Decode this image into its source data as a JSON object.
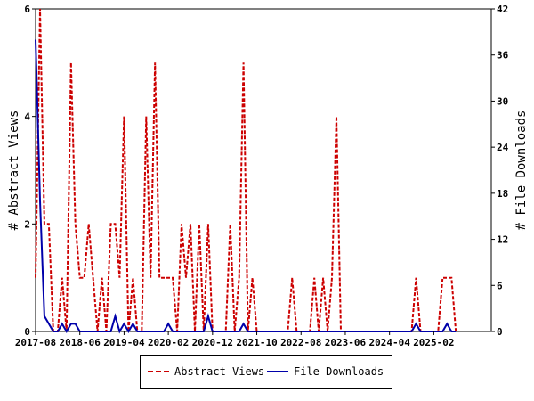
{
  "chart_data": {
    "type": "line",
    "title": "",
    "ylabel": "# Abstract Views",
    "y2label": "# File Downloads",
    "ylim": [
      0,
      6
    ],
    "y2lim": [
      0,
      42
    ],
    "yticks": [
      "0",
      "2",
      "4",
      "6"
    ],
    "y2ticks": [
      "0",
      "6",
      "12",
      "18",
      "24",
      "30",
      "36",
      "42"
    ],
    "xlim": [
      "2017-08",
      "2026-03"
    ],
    "xticks": [
      "2017-08",
      "2018-06",
      "2019-04",
      "2020-02",
      "2020-12",
      "2021-10",
      "2022-08",
      "2023-06",
      "2024-04",
      "2025-02"
    ],
    "grid": false,
    "legend_position": "bottom",
    "series": [
      {
        "name": "Abstract Views",
        "axis": "left",
        "color": "#cc0000",
        "style": "dashed",
        "points": [
          [
            "2017-08",
            1
          ],
          [
            "2017-09",
            6
          ],
          [
            "2017-10",
            2
          ],
          [
            "2017-11",
            2
          ],
          [
            "2017-12",
            0
          ],
          [
            "2018-01",
            0
          ],
          [
            "2018-02",
            1
          ],
          [
            "2018-03",
            0
          ],
          [
            "2018-04",
            5
          ],
          [
            "2018-05",
            2
          ],
          [
            "2018-06",
            1
          ],
          [
            "2018-07",
            1
          ],
          [
            "2018-08",
            2
          ],
          [
            "2018-09",
            1
          ],
          [
            "2018-10",
            0
          ],
          [
            "2018-11",
            1
          ],
          [
            "2018-12",
            0
          ],
          [
            "2019-01",
            2
          ],
          [
            "2019-02",
            2
          ],
          [
            "2019-03",
            1
          ],
          [
            "2019-04",
            4
          ],
          [
            "2019-05",
            0
          ],
          [
            "2019-06",
            1
          ],
          [
            "2019-07",
            0
          ],
          [
            "2019-08",
            0
          ],
          [
            "2019-09",
            4
          ],
          [
            "2019-10",
            1
          ],
          [
            "2019-11",
            5
          ],
          [
            "2019-12",
            1
          ],
          [
            "2020-01",
            1
          ],
          [
            "2020-02",
            1
          ],
          [
            "2020-03",
            1
          ],
          [
            "2020-04",
            0
          ],
          [
            "2020-05",
            2
          ],
          [
            "2020-06",
            1
          ],
          [
            "2020-07",
            2
          ],
          [
            "2020-08",
            0
          ],
          [
            "2020-09",
            2
          ],
          [
            "2020-10",
            0
          ],
          [
            "2020-11",
            2
          ],
          [
            "2020-12",
            0
          ],
          [
            "2021-01",
            0
          ],
          [
            "2021-02",
            0
          ],
          [
            "2021-03",
            0
          ],
          [
            "2021-04",
            2
          ],
          [
            "2021-05",
            0
          ],
          [
            "2021-06",
            1
          ],
          [
            "2021-07",
            5
          ],
          [
            "2021-08",
            0
          ],
          [
            "2021-09",
            1
          ],
          [
            "2021-10",
            0
          ],
          [
            "2021-11",
            0
          ],
          [
            "2021-12",
            0
          ],
          [
            "2022-01",
            0
          ],
          [
            "2022-02",
            0
          ],
          [
            "2022-03",
            0
          ],
          [
            "2022-04",
            0
          ],
          [
            "2022-05",
            0
          ],
          [
            "2022-06",
            1
          ],
          [
            "2022-07",
            0
          ],
          [
            "2022-08",
            0
          ],
          [
            "2022-09",
            0
          ],
          [
            "2022-10",
            0
          ],
          [
            "2022-11",
            1
          ],
          [
            "2022-12",
            0
          ],
          [
            "2023-01",
            1
          ],
          [
            "2023-02",
            0
          ],
          [
            "2023-03",
            1
          ],
          [
            "2023-04",
            4
          ],
          [
            "2023-05",
            0
          ],
          [
            "2023-06",
            0
          ],
          [
            "2023-07",
            0
          ],
          [
            "2023-08",
            0
          ],
          [
            "2023-09",
            0
          ],
          [
            "2023-10",
            0
          ],
          [
            "2023-11",
            0
          ],
          [
            "2023-12",
            0
          ],
          [
            "2024-01",
            0
          ],
          [
            "2024-02",
            0
          ],
          [
            "2024-03",
            0
          ],
          [
            "2024-04",
            0
          ],
          [
            "2024-05",
            0
          ],
          [
            "2024-06",
            0
          ],
          [
            "2024-07",
            0
          ],
          [
            "2024-08",
            0
          ],
          [
            "2024-09",
            0
          ],
          [
            "2024-10",
            1
          ],
          [
            "2024-11",
            0
          ],
          [
            "2024-12",
            0
          ],
          [
            "2025-01",
            0
          ],
          [
            "2025-02",
            0
          ],
          [
            "2025-03",
            0
          ],
          [
            "2025-04",
            1
          ],
          [
            "2025-05",
            1
          ],
          [
            "2025-06",
            1
          ],
          [
            "2025-07",
            0
          ]
        ]
      },
      {
        "name": "File Downloads",
        "axis": "right",
        "color": "#0000aa",
        "style": "solid",
        "points": [
          [
            "2017-08",
            38
          ],
          [
            "2017-09",
            17
          ],
          [
            "2017-10",
            2
          ],
          [
            "2017-11",
            1
          ],
          [
            "2017-12",
            0
          ],
          [
            "2018-01",
            0
          ],
          [
            "2018-02",
            1
          ],
          [
            "2018-03",
            0
          ],
          [
            "2018-04",
            1
          ],
          [
            "2018-05",
            1
          ],
          [
            "2018-06",
            0
          ],
          [
            "2018-07",
            0
          ],
          [
            "2018-08",
            0
          ],
          [
            "2018-09",
            0
          ],
          [
            "2018-10",
            0
          ],
          [
            "2018-11",
            0
          ],
          [
            "2018-12",
            0
          ],
          [
            "2019-01",
            0
          ],
          [
            "2019-02",
            2
          ],
          [
            "2019-03",
            0
          ],
          [
            "2019-04",
            1
          ],
          [
            "2019-05",
            0
          ],
          [
            "2019-06",
            1
          ],
          [
            "2019-07",
            0
          ],
          [
            "2019-08",
            0
          ],
          [
            "2019-09",
            0
          ],
          [
            "2019-10",
            0
          ],
          [
            "2019-11",
            0
          ],
          [
            "2019-12",
            0
          ],
          [
            "2020-01",
            0
          ],
          [
            "2020-02",
            1
          ],
          [
            "2020-03",
            0
          ],
          [
            "2020-04",
            0
          ],
          [
            "2020-05",
            0
          ],
          [
            "2020-06",
            0
          ],
          [
            "2020-07",
            0
          ],
          [
            "2020-08",
            0
          ],
          [
            "2020-09",
            0
          ],
          [
            "2020-10",
            0
          ],
          [
            "2020-11",
            2
          ],
          [
            "2020-12",
            0
          ],
          [
            "2021-01",
            0
          ],
          [
            "2021-02",
            0
          ],
          [
            "2021-03",
            0
          ],
          [
            "2021-04",
            0
          ],
          [
            "2021-05",
            0
          ],
          [
            "2021-06",
            0
          ],
          [
            "2021-07",
            1
          ],
          [
            "2021-08",
            0
          ],
          [
            "2021-09",
            0
          ],
          [
            "2021-10",
            0
          ],
          [
            "2021-11",
            0
          ],
          [
            "2021-12",
            0
          ],
          [
            "2022-01",
            0
          ],
          [
            "2022-02",
            0
          ],
          [
            "2022-03",
            0
          ],
          [
            "2022-04",
            0
          ],
          [
            "2022-05",
            0
          ],
          [
            "2022-06",
            0
          ],
          [
            "2022-07",
            0
          ],
          [
            "2022-08",
            0
          ],
          [
            "2022-09",
            0
          ],
          [
            "2022-10",
            0
          ],
          [
            "2022-11",
            0
          ],
          [
            "2022-12",
            0
          ],
          [
            "2023-01",
            0
          ],
          [
            "2023-02",
            0
          ],
          [
            "2023-03",
            0
          ],
          [
            "2023-04",
            0
          ],
          [
            "2023-05",
            0
          ],
          [
            "2023-06",
            0
          ],
          [
            "2023-07",
            0
          ],
          [
            "2023-08",
            0
          ],
          [
            "2023-09",
            0
          ],
          [
            "2023-10",
            0
          ],
          [
            "2023-11",
            0
          ],
          [
            "2023-12",
            0
          ],
          [
            "2024-01",
            0
          ],
          [
            "2024-02",
            0
          ],
          [
            "2024-03",
            0
          ],
          [
            "2024-04",
            0
          ],
          [
            "2024-05",
            0
          ],
          [
            "2024-06",
            0
          ],
          [
            "2024-07",
            0
          ],
          [
            "2024-08",
            0
          ],
          [
            "2024-09",
            0
          ],
          [
            "2024-10",
            1
          ],
          [
            "2024-11",
            0
          ],
          [
            "2024-12",
            0
          ],
          [
            "2025-01",
            0
          ],
          [
            "2025-02",
            0
          ],
          [
            "2025-03",
            0
          ],
          [
            "2025-04",
            0
          ],
          [
            "2025-05",
            1
          ],
          [
            "2025-06",
            0
          ],
          [
            "2025-07",
            0
          ]
        ]
      }
    ]
  }
}
